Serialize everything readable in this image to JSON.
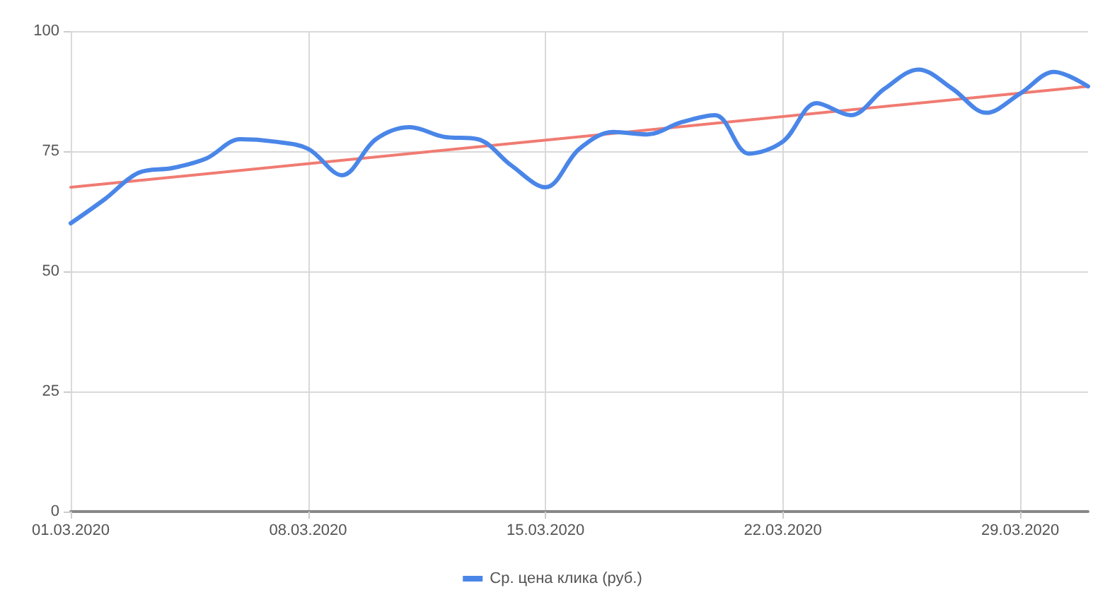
{
  "chart_data": {
    "type": "line",
    "x": [
      "2020-03-01",
      "2020-03-02",
      "2020-03-03",
      "2020-03-04",
      "2020-03-05",
      "2020-03-06",
      "2020-03-07",
      "2020-03-08",
      "2020-03-09",
      "2020-03-10",
      "2020-03-11",
      "2020-03-12",
      "2020-03-13",
      "2020-03-14",
      "2020-03-15",
      "2020-03-16",
      "2020-03-17",
      "2020-03-18",
      "2020-03-19",
      "2020-03-20",
      "2020-03-21",
      "2020-03-22",
      "2020-03-23",
      "2020-03-24",
      "2020-03-25",
      "2020-03-26",
      "2020-03-27",
      "2020-03-28",
      "2020-03-29",
      "2020-03-30",
      "2020-03-31"
    ],
    "series": [
      {
        "name": "Ср. цена клика (руб.)",
        "color": "#4a86e8",
        "values": [
          60,
          65,
          70.5,
          71.5,
          73.5,
          77.5,
          77,
          75.5,
          70,
          77.5,
          80,
          78,
          77.5,
          72,
          67.5,
          75.5,
          79,
          78.5,
          81,
          82.5,
          74.5,
          77,
          85,
          82.5,
          88,
          92,
          88,
          83,
          87,
          91.5,
          88.5
        ]
      },
      {
        "type": "line",
        "color": "#f07b72",
        "x": [
          "2020-03-01",
          "2020-03-31"
        ],
        "values": [
          67.5,
          88.5
        ]
      }
    ],
    "xlim": [
      "2020-03-01",
      "2020-03-31"
    ],
    "xticks": [
      {
        "value": "2020-03-01",
        "label": "01.03.2020"
      },
      {
        "value": "2020-03-08",
        "label": "08.03.2020"
      },
      {
        "value": "2020-03-15",
        "label": "15.03.2020"
      },
      {
        "value": "2020-03-22",
        "label": "22.03.2020"
      },
      {
        "value": "2020-03-29",
        "label": "29.03.2020"
      }
    ],
    "ylim": [
      0,
      100
    ],
    "yticks": [
      0,
      25,
      50,
      75,
      100
    ],
    "grid": true,
    "legend": "bottom",
    "marker": "none",
    "line_style": "solid"
  }
}
